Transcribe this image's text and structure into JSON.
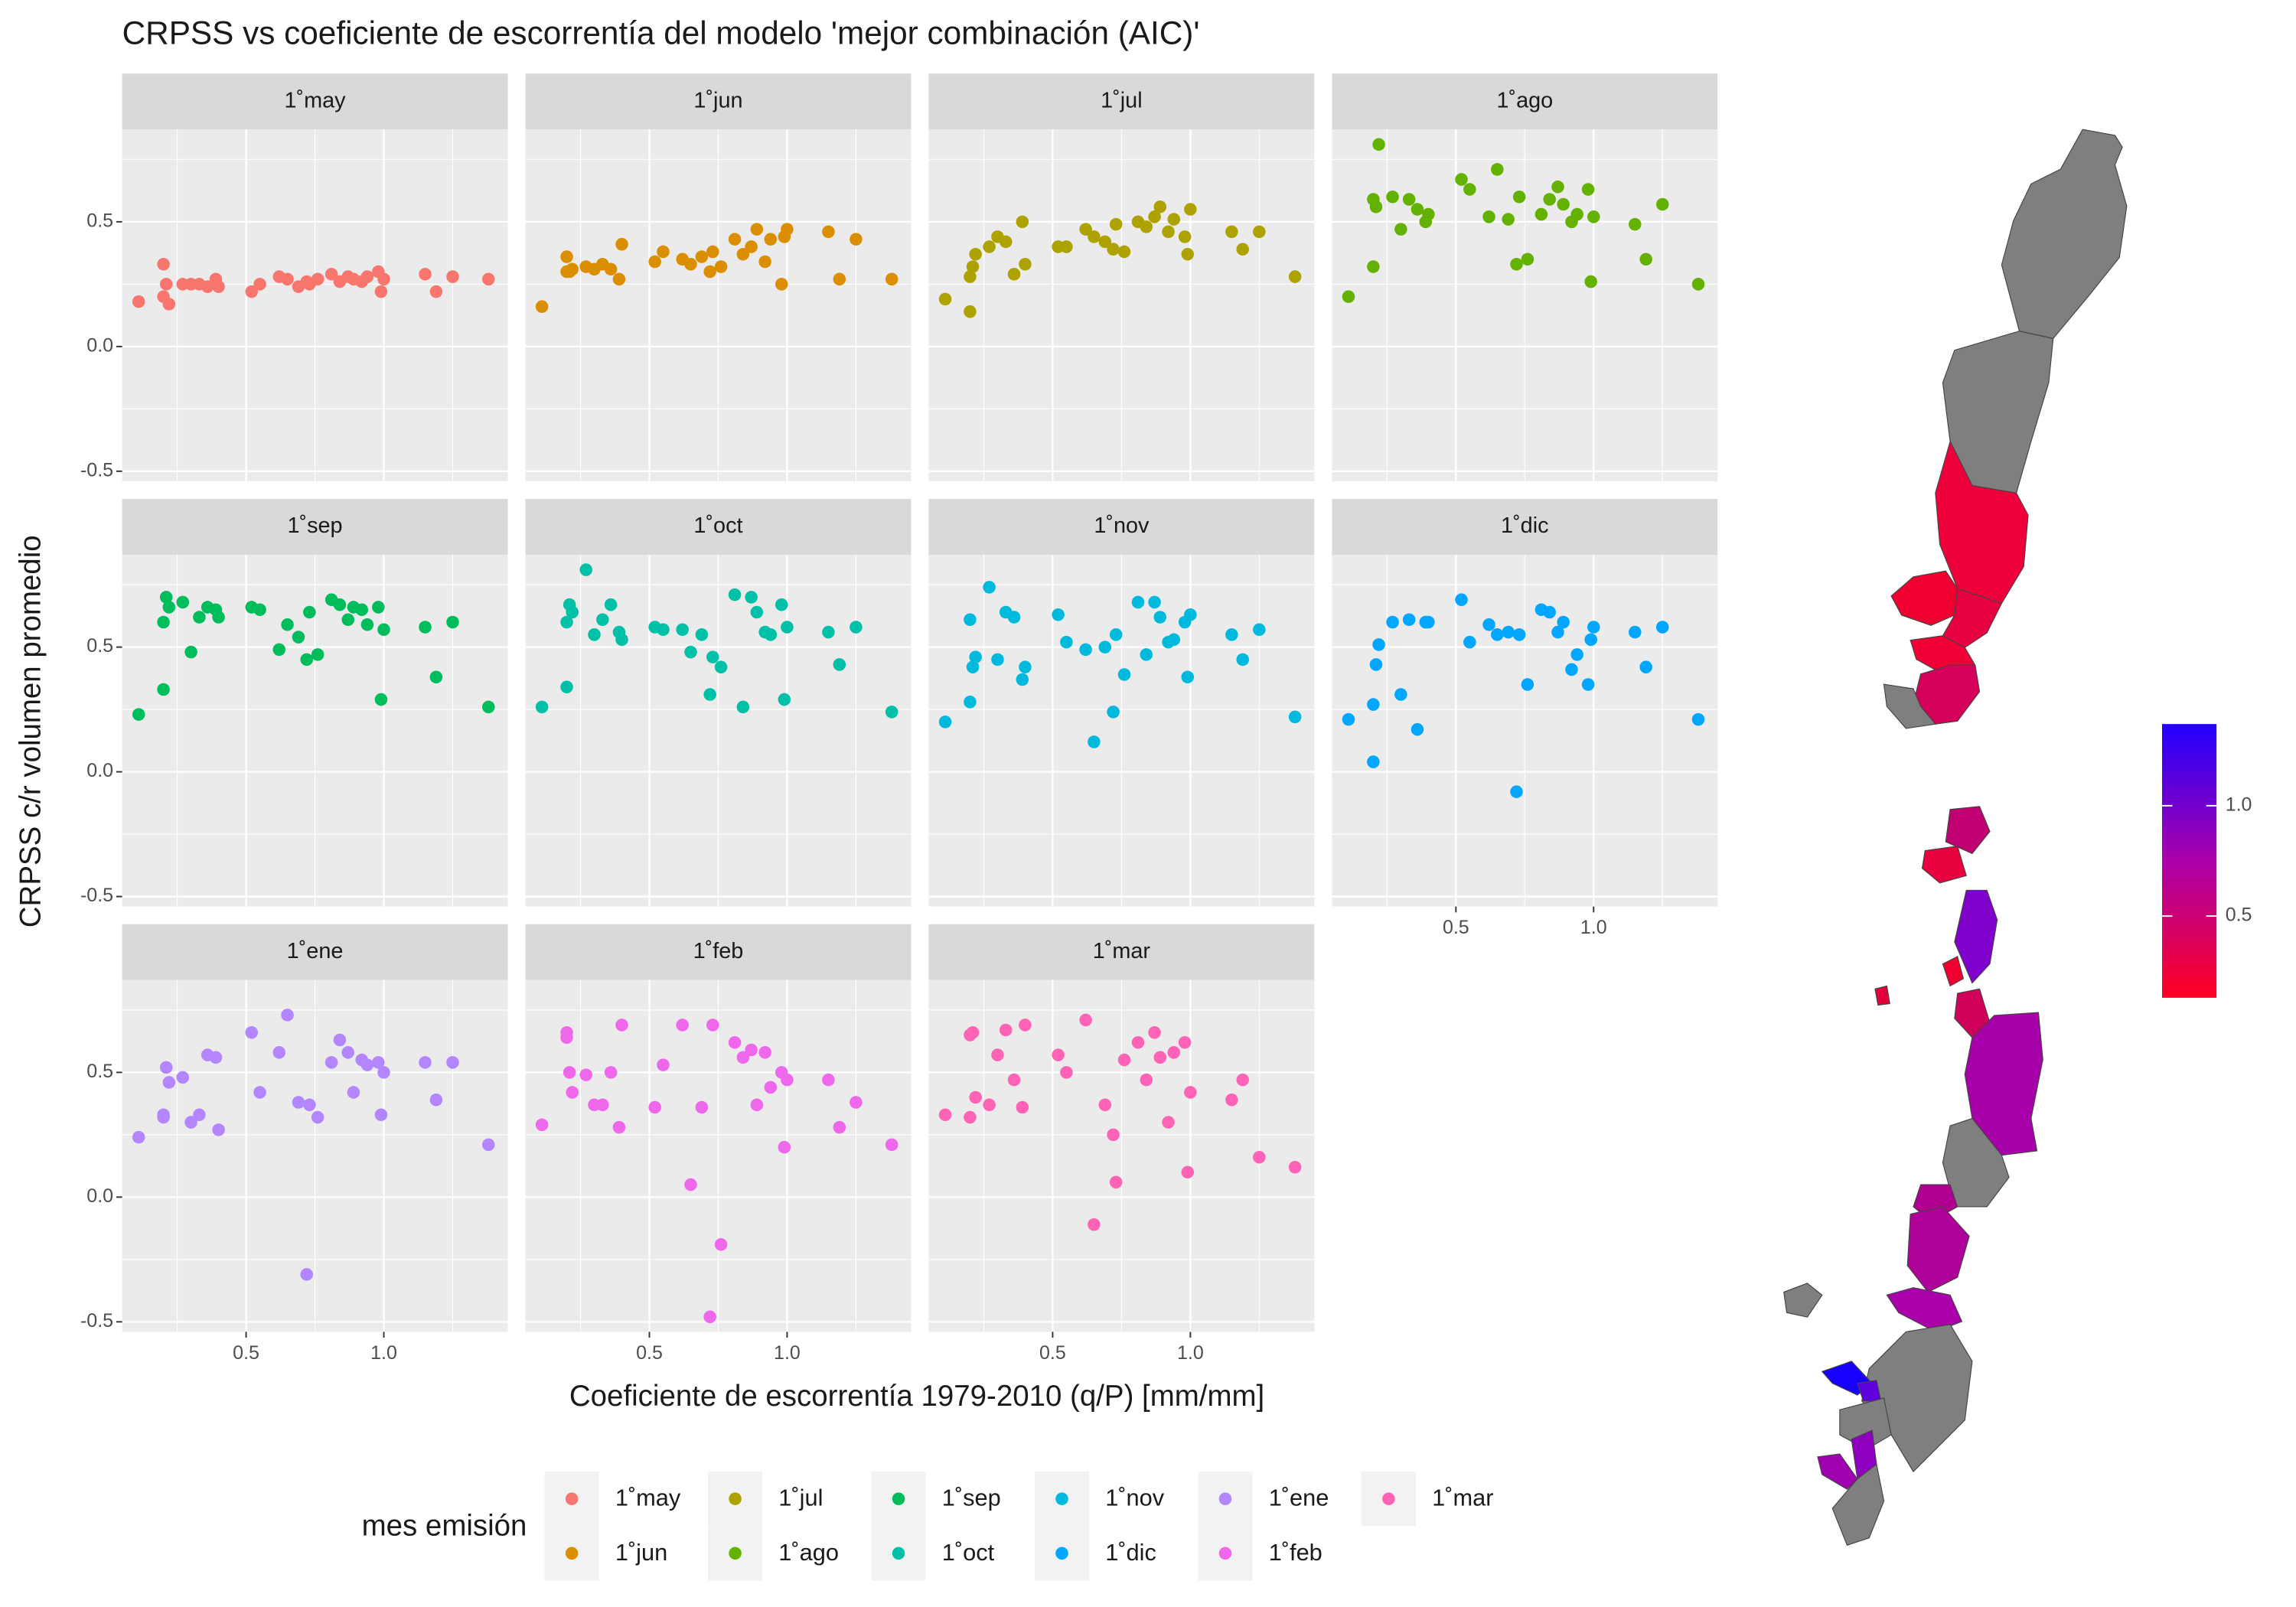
{
  "chart_data": {
    "type": "scatter",
    "title": "CRPSS vs coeficiente de escorrentía del modelo 'mejor combinación (AIC)'",
    "x_label": "Coeficiente de escorrentía 1979-2010 (q/P) [mm/mm]",
    "y_label": "CRPSS c/r volumen promedio",
    "legend_title": "mes emisión",
    "facet": true,
    "grid": true,
    "xlim": [
      0.05,
      1.45
    ],
    "ylim": [
      -0.54,
      0.87
    ],
    "xticks": [
      0.5,
      {
        "value": 1,
        "label": "1.0"
      }
    ],
    "yticks": [
      -0.5,
      {
        "value": 0,
        "label": "0.0"
      },
      0.5
    ],
    "x": [
      0.11,
      0.2,
      0.2,
      0.21,
      0.22,
      0.27,
      0.3,
      0.33,
      0.36,
      0.39,
      0.4,
      0.52,
      0.55,
      0.62,
      0.65,
      0.69,
      0.72,
      0.73,
      0.76,
      0.81,
      0.84,
      0.87,
      0.89,
      0.92,
      0.94,
      0.98,
      0.99,
      1.0,
      1.15,
      1.19,
      1.25,
      1.38
    ],
    "series": [
      {
        "name": "1˚may",
        "color": "#F8766D",
        "values": [
          0.18,
          0.33,
          0.2,
          0.25,
          0.17,
          0.25,
          0.25,
          0.25,
          0.24,
          0.27,
          0.24,
          0.22,
          0.25,
          0.28,
          0.27,
          0.24,
          0.26,
          0.25,
          0.27,
          0.29,
          0.26,
          0.28,
          0.27,
          0.26,
          0.28,
          0.3,
          0.22,
          0.27,
          0.29,
          0.22,
          0.28,
          0.27
        ]
      },
      {
        "name": "1˚jun",
        "color": "#DB8E00",
        "values": [
          0.16,
          0.3,
          0.36,
          0.3,
          0.31,
          0.32,
          0.31,
          0.33,
          0.31,
          0.27,
          0.41,
          0.34,
          0.38,
          0.35,
          0.33,
          0.36,
          0.3,
          0.38,
          0.32,
          0.43,
          0.37,
          0.4,
          0.47,
          0.34,
          0.43,
          0.25,
          0.44,
          0.47,
          0.46,
          0.27,
          0.43,
          0.27
        ]
      },
      {
        "name": "1˚jul",
        "color": "#AEA200",
        "values": [
          0.19,
          0.14,
          0.28,
          0.32,
          0.37,
          0.4,
          0.44,
          0.42,
          0.29,
          0.5,
          0.33,
          0.4,
          0.4,
          0.47,
          0.44,
          0.42,
          0.39,
          0.49,
          0.38,
          0.5,
          0.48,
          0.52,
          0.56,
          0.46,
          0.51,
          0.44,
          0.37,
          0.55,
          0.46,
          0.39,
          0.46,
          0.28
        ]
      },
      {
        "name": "1˚ago",
        "color": "#64B200",
        "values": [
          0.2,
          0.32,
          0.59,
          0.56,
          0.81,
          0.6,
          0.47,
          0.59,
          0.55,
          0.5,
          0.53,
          0.67,
          0.63,
          0.52,
          0.71,
          0.51,
          0.33,
          0.6,
          0.35,
          0.53,
          0.59,
          0.64,
          0.57,
          0.5,
          0.53,
          0.63,
          0.26,
          0.52,
          0.49,
          0.35,
          0.57,
          0.25
        ]
      },
      {
        "name": "1˚sep",
        "color": "#00BD5C",
        "values": [
          0.23,
          0.33,
          0.6,
          0.7,
          0.66,
          0.68,
          0.48,
          0.62,
          0.66,
          0.65,
          0.62,
          0.66,
          0.65,
          0.49,
          0.59,
          0.54,
          0.45,
          0.64,
          0.47,
          0.69,
          0.67,
          0.61,
          0.66,
          0.65,
          0.59,
          0.66,
          0.29,
          0.57,
          0.58,
          0.38,
          0.6,
          0.26
        ]
      },
      {
        "name": "1˚oct",
        "color": "#00C1A7",
        "values": [
          0.26,
          0.34,
          0.6,
          0.67,
          0.64,
          0.81,
          0.55,
          0.61,
          0.67,
          0.56,
          0.53,
          0.58,
          0.57,
          0.57,
          0.48,
          0.55,
          0.31,
          0.46,
          0.42,
          0.71,
          0.26,
          0.7,
          0.64,
          0.56,
          0.55,
          0.67,
          0.29,
          0.58,
          0.56,
          0.43,
          0.58,
          0.24
        ]
      },
      {
        "name": "1˚nov",
        "color": "#00BADE",
        "values": [
          0.2,
          0.28,
          0.61,
          0.42,
          0.46,
          0.74,
          0.45,
          0.64,
          0.62,
          0.37,
          0.42,
          0.63,
          0.52,
          0.49,
          0.12,
          0.5,
          0.24,
          0.55,
          0.39,
          0.68,
          0.47,
          0.68,
          0.62,
          0.52,
          0.53,
          0.6,
          0.38,
          0.63,
          0.55,
          0.45,
          0.57,
          0.22
        ]
      },
      {
        "name": "1˚dic",
        "color": "#00A6FF",
        "values": [
          0.21,
          0.27,
          0.04,
          0.43,
          0.51,
          0.6,
          0.31,
          0.61,
          0.17,
          0.6,
          0.6,
          0.69,
          0.52,
          0.59,
          0.55,
          0.56,
          -0.08,
          0.55,
          0.35,
          0.65,
          0.64,
          0.56,
          0.6,
          0.41,
          0.47,
          0.35,
          0.53,
          0.58,
          0.56,
          0.42,
          0.58,
          0.21
        ]
      },
      {
        "name": "1˚ene",
        "color": "#B385FF",
        "values": [
          0.24,
          0.33,
          0.32,
          0.52,
          0.46,
          0.48,
          0.3,
          0.33,
          0.57,
          0.56,
          0.27,
          0.66,
          0.42,
          0.58,
          0.73,
          0.38,
          -0.31,
          0.37,
          0.32,
          0.54,
          0.63,
          0.58,
          0.42,
          0.55,
          0.53,
          0.54,
          0.33,
          0.5,
          0.54,
          0.39,
          0.54,
          0.21
        ]
      },
      {
        "name": "1˚feb",
        "color": "#EF67EB",
        "values": [
          0.29,
          0.66,
          0.64,
          0.5,
          0.42,
          0.49,
          0.37,
          0.37,
          0.5,
          0.28,
          0.69,
          0.36,
          0.53,
          0.69,
          0.05,
          0.36,
          -0.48,
          0.69,
          -0.19,
          0.62,
          0.56,
          0.59,
          0.37,
          0.58,
          0.44,
          0.5,
          0.2,
          0.47,
          0.47,
          0.28,
          0.38,
          0.21
        ]
      },
      {
        "name": "1˚mar",
        "color": "#FF63B6",
        "values": [
          0.33,
          0.32,
          0.65,
          0.66,
          0.4,
          0.37,
          0.57,
          0.67,
          0.47,
          0.36,
          0.69,
          0.57,
          0.5,
          0.71,
          -0.11,
          0.37,
          0.25,
          0.06,
          0.55,
          0.62,
          0.47,
          0.66,
          0.56,
          0.3,
          0.58,
          0.62,
          0.1,
          0.42,
          0.39,
          0.47,
          0.16,
          0.12
        ]
      }
    ],
    "colorbar": {
      "lim": [
        0.13,
        1.37
      ],
      "ticks": [
        0.5,
        {
          "value": 1,
          "label": "1.0"
        }
      ],
      "colors": [
        "#ff0022",
        "#aa00aa",
        "#2200ff"
      ]
    }
  }
}
